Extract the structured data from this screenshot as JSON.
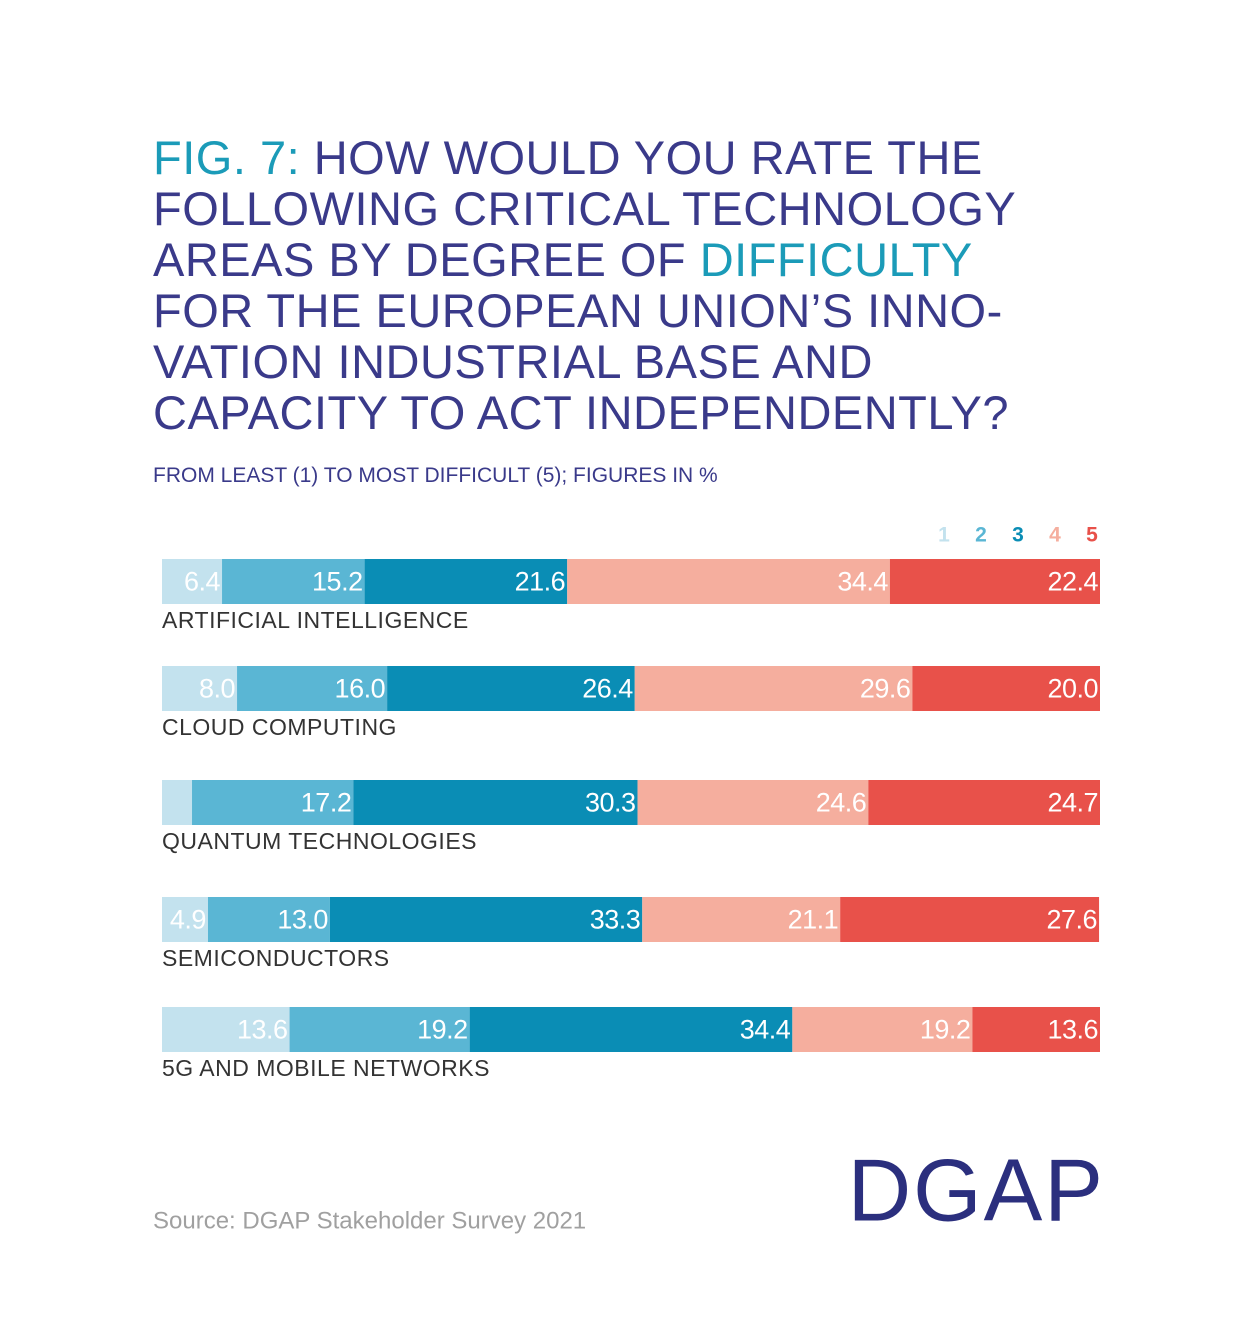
{
  "chart_data": {
    "type": "stacked-bar-horizontal",
    "title": [
      {
        "text": "FIG. 7:",
        "color": "#1b9bb8"
      },
      {
        "text": " HOW WOULD YOU RATE THE FOLLOWING CRITICAL TECHNOLOGY AREAS BY DEGREE OF ",
        "color": "#3a3a8a"
      },
      {
        "text": "DIFFICULTY",
        "color": "#1b9bb8"
      },
      {
        "text": " FOR THE EUROPEAN UNION’S INNO-VATION INDUSTRIAL BASE AND CAPACITY TO ACT INDEPENDENTLY?",
        "color": "#3a3a8a"
      }
    ],
    "subtitle": "FROM LEAST (1) TO MOST DIFFICULT (5); FIGURES IN %",
    "categories": [
      "ARTIFICIAL INTELLIGENCE",
      "CLOUD COMPUTING",
      "QUANTUM TECHNOLOGIES",
      "SEMICONDUCTORS",
      "5G AND MOBILE NETWORKS"
    ],
    "xlim": [
      0,
      100
    ],
    "series": [
      {
        "name": "1",
        "color": "#c3e2ee",
        "values": [
          6.4,
          8.0,
          3.2,
          4.9,
          13.6
        ],
        "value_labels": [
          "6.4",
          "8.0",
          null,
          "4.9",
          "13.6"
        ]
      },
      {
        "name": "2",
        "color": "#5ab6d4",
        "values": [
          15.2,
          16.0,
          17.2,
          13.0,
          19.2
        ],
        "value_labels": [
          "15.2",
          "16.0",
          "17.2",
          "13.0",
          "19.2"
        ]
      },
      {
        "name": "3",
        "color": "#0a8db5",
        "values": [
          21.6,
          26.4,
          30.3,
          33.3,
          34.4
        ],
        "value_labels": [
          "21.6",
          "26.4",
          "30.3",
          "33.3",
          "34.4"
        ]
      },
      {
        "name": "4",
        "color": "#f5ae9e",
        "values": [
          34.4,
          29.6,
          24.6,
          21.1,
          19.2
        ],
        "value_labels": [
          "34.4",
          "29.6",
          "24.6",
          "21.1",
          "19.2"
        ]
      },
      {
        "name": "5",
        "color": "#e8514a",
        "values": [
          22.4,
          20.0,
          24.7,
          27.6,
          13.6
        ],
        "value_labels": [
          "22.4",
          "20.0",
          "24.7",
          "27.6",
          "13.6"
        ]
      }
    ],
    "source": "Source: DGAP Stakeholder Survey 2021",
    "logo": "DGAP"
  }
}
